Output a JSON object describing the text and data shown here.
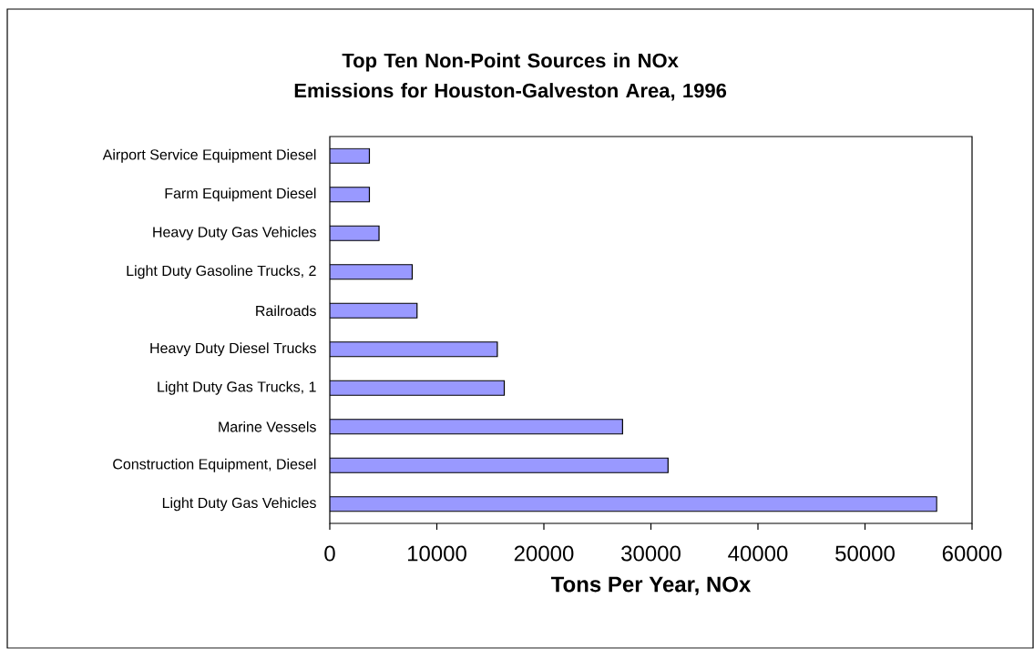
{
  "chart_data": {
    "type": "bar",
    "orientation": "horizontal",
    "title": "Top Ten Non-Point Sources in NOx Emissions for Houston-Galveston Area, 1996",
    "xlabel": "Tons Per Year, NOx",
    "categories": [
      "Airport Service Equipment Diesel",
      "Farm Equipment Diesel",
      "Heavy Duty Gas Vehicles",
      "Light Duty Gasoline Trucks, 2",
      "Railroads",
      "Heavy Duty Diesel Trucks",
      "Light Duty Gas Trucks, 1",
      "Marine Vessels",
      "Construction Equipment, Diesel",
      "Light Duty Gas Vehicles"
    ],
    "values": [
      3700,
      3700,
      4600,
      7700,
      8150,
      15650,
      16300,
      27350,
      31600,
      56700
    ],
    "color": "#9999ff",
    "xlim": [
      0,
      60000
    ],
    "xticks": [
      0,
      10000,
      20000,
      30000,
      40000,
      50000,
      60000
    ]
  }
}
